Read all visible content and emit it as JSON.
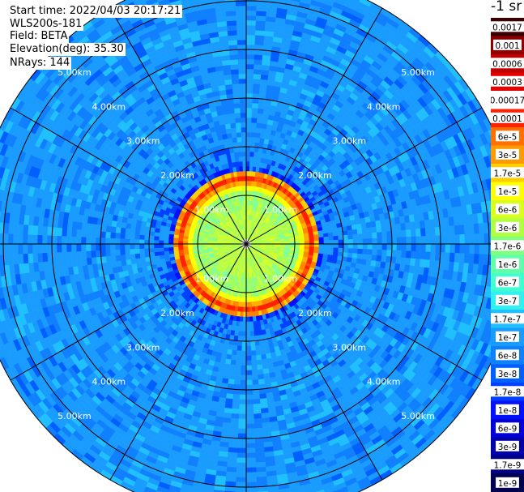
{
  "info": {
    "start_time": "Start time: 2022/04/03 20:17:21",
    "instrument": "WLS200s-181",
    "field": "Field: BETA",
    "elevation": "Elevation(deg): 35.30",
    "nrays": "NRays: 144"
  },
  "unit_label": "-1 sr",
  "colors": {
    "background": "#ffffff",
    "grid": "#000000",
    "range_label": "#ffffff"
  },
  "chart_data": {
    "type": "heatmap",
    "title": "",
    "projection": "polar (PPI scan)",
    "field": "BETA",
    "n_rays": 144,
    "range_rings_km": [
      1,
      2,
      3,
      4,
      5
    ],
    "range_labels": [
      "1.00km",
      "2.00km",
      "3.00km",
      "4.00km",
      "5.00km"
    ],
    "max_range_km": 5.6,
    "spokes_deg": [
      0,
      30,
      60,
      90,
      120,
      150,
      180,
      210,
      240,
      270,
      300,
      330
    ],
    "colorbar": {
      "scale": "log",
      "tick_labels": [
        "0.0017",
        "0.001",
        "0.0006",
        "0.0003",
        "0.00017",
        "0.0001",
        "6e-5",
        "3e-5",
        "1.7e-5",
        "1e-5",
        "6e-6",
        "3e-6",
        "1.7e-6",
        "1e-6",
        "6e-7",
        "3e-7",
        "1.7e-7",
        "1e-7",
        "6e-8",
        "3e-8",
        "1.7e-8",
        "1e-8",
        "6e-9",
        "3e-9",
        "1.7e-9",
        "1e-9"
      ],
      "colors": [
        "#3a0000",
        "#8b0000",
        "#c00000",
        "#e80000",
        "#ffffff",
        "#ff2000",
        "#ff7000",
        "#ff9a00",
        "#ffd000",
        "#ffff00",
        "#d8ff20",
        "#b0ff40",
        "#80ff80",
        "#60ffa8",
        "#40ffd0",
        "#30f0f0",
        "#20c0ff",
        "#1a9cff",
        "#1080ff",
        "#0060ff",
        "#0040ff",
        "#0010ff",
        "#0000d8",
        "#0000a8",
        "#000080",
        "#000050"
      ]
    },
    "profile_summary": [
      {
        "range_km": [
          0.0,
          1.2
        ],
        "beta": "3e-6 to 1e-5",
        "description": "yellow-green near field"
      },
      {
        "range_km": [
          1.2,
          1.5
        ],
        "beta": "3e-5 to 1e-4",
        "description": "orange-red ring"
      },
      {
        "range_km": [
          1.5,
          1.7
        ],
        "beta": "1e-8 to 1e-7",
        "description": "blue gap"
      },
      {
        "range_km": [
          1.7,
          5.6
        ],
        "beta": "3e-8 to 1.7e-7",
        "description": "light blue background"
      }
    ]
  }
}
